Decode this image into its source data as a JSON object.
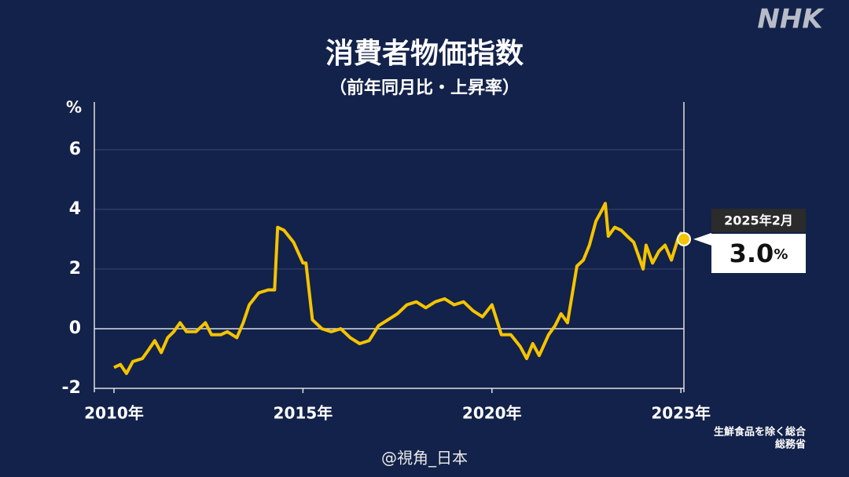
{
  "chart_data": {
    "type": "line",
    "title": "消費者物価指数",
    "subtitle": "（前年同月比・上昇率）",
    "y_label": "%",
    "x": [
      2010.0,
      2010.17,
      2010.33,
      2010.5,
      2010.75,
      2010.92,
      2011.08,
      2011.25,
      2011.42,
      2011.58,
      2011.75,
      2011.92,
      2012.17,
      2012.42,
      2012.58,
      2012.83,
      2013.0,
      2013.25,
      2013.42,
      2013.58,
      2013.83,
      2014.08,
      2014.25,
      2014.33,
      2014.5,
      2014.75,
      2015.0,
      2015.08,
      2015.25,
      2015.5,
      2015.75,
      2016.0,
      2016.25,
      2016.5,
      2016.75,
      2017.0,
      2017.25,
      2017.5,
      2017.75,
      2018.0,
      2018.25,
      2018.5,
      2018.75,
      2019.0,
      2019.25,
      2019.5,
      2019.75,
      2020.0,
      2020.25,
      2020.5,
      2020.75,
      2020.92,
      2021.08,
      2021.25,
      2021.5,
      2021.67,
      2021.83,
      2022.0,
      2022.25,
      2022.42,
      2022.58,
      2022.75,
      2022.92,
      2023.0,
      2023.08,
      2023.25,
      2023.42,
      2023.58,
      2023.75,
      2023.92,
      2024.0,
      2024.08,
      2024.25,
      2024.42,
      2024.58,
      2024.75,
      2024.92,
      2025.0,
      2025.08
    ],
    "series": [
      {
        "color": "#f5c400",
        "values": [
          -1.3,
          -1.2,
          -1.5,
          -1.1,
          -1.0,
          -0.7,
          -0.4,
          -0.8,
          -0.3,
          -0.1,
          0.2,
          -0.1,
          -0.1,
          0.2,
          -0.2,
          -0.2,
          -0.1,
          -0.3,
          0.2,
          0.8,
          1.2,
          1.3,
          1.3,
          3.4,
          3.3,
          2.9,
          2.2,
          2.2,
          0.3,
          0.0,
          -0.1,
          0.0,
          -0.3,
          -0.5,
          -0.4,
          0.1,
          0.3,
          0.5,
          0.8,
          0.9,
          0.7,
          0.9,
          1.0,
          0.8,
          0.9,
          0.6,
          0.4,
          0.8,
          -0.2,
          -0.2,
          -0.6,
          -1.0,
          -0.5,
          -0.9,
          -0.2,
          0.1,
          0.5,
          0.2,
          2.1,
          2.3,
          2.8,
          3.6,
          4.0,
          4.2,
          3.1,
          3.4,
          3.3,
          3.1,
          2.9,
          2.3,
          2.0,
          2.8,
          2.2,
          2.6,
          2.8,
          2.3,
          3.0,
          3.2,
          3.0
        ]
      }
    ],
    "xlim": [
      2010,
      2025.08
    ],
    "xticks": [
      {
        "value": 2010,
        "label": "2010年"
      },
      {
        "value": 2015,
        "label": "2015年"
      },
      {
        "value": 2020,
        "label": "2020年"
      },
      {
        "value": 2025,
        "label": "2025年"
      }
    ],
    "ylim": [
      -2,
      7.6
    ],
    "yticks": [
      -2,
      0,
      2,
      4,
      6
    ],
    "grid": true,
    "callout": {
      "label": "2025年2月",
      "value": 3.0,
      "value_label": "3.0",
      "unit": "%"
    },
    "source": [
      "生鮮食品を除く総合",
      "総務省"
    ],
    "watermark": "@視角_日本",
    "logo": "NHK"
  }
}
